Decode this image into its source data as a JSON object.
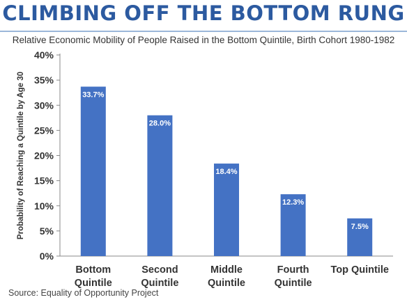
{
  "chart_data": {
    "type": "bar",
    "title": "CLIMBING OFF THE BOTTOM RUNG",
    "subtitle": "Relative Economic Mobility of People Raised in the Bottom Quintile, Birth Cohort 1980-1982",
    "ylabel": "Probability of Reaching a Quintile by Age 30",
    "categories": [
      [
        "Bottom",
        "Quintile"
      ],
      [
        "Second",
        "Quintile"
      ],
      [
        "Middle",
        "Quintile"
      ],
      [
        "Fourth",
        "Quintile"
      ],
      [
        "Top Quintile"
      ]
    ],
    "values": [
      33.7,
      28.0,
      18.4,
      12.3,
      7.5
    ],
    "data_labels": [
      "33.7%",
      "28.0%",
      "18.4%",
      "12.3%",
      "7.5%"
    ],
    "yticks": [
      "0%",
      "5%",
      "10%",
      "15%",
      "20%",
      "25%",
      "30%",
      "35%",
      "40%"
    ],
    "ylim": [
      0,
      40
    ],
    "grid": false,
    "bar_color": "#4472c4",
    "source": "Source: Equality of Opportunity Project"
  }
}
